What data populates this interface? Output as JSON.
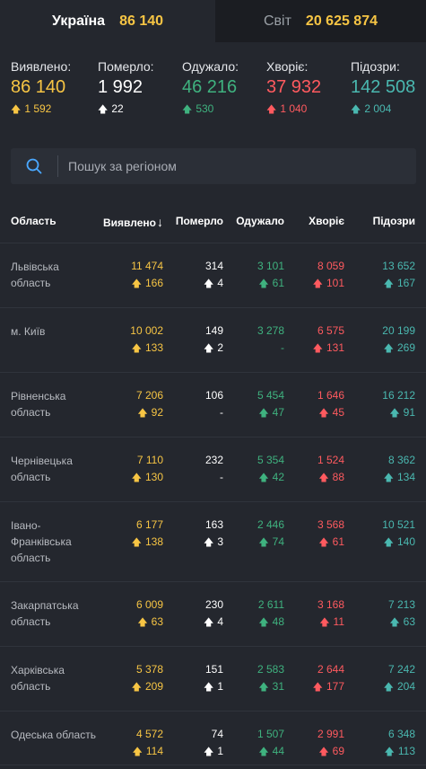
{
  "tabs": [
    {
      "name": "Україна",
      "value": "86 140"
    },
    {
      "name": "Світ",
      "value": "20 625 874"
    }
  ],
  "summary": [
    {
      "label": "Виявлено:",
      "value": "86 140",
      "change": "1 592",
      "color": "yellow"
    },
    {
      "label": "Померло:",
      "value": "1 992",
      "change": "22",
      "color": "white"
    },
    {
      "label": "Одужало:",
      "value": "46 216",
      "change": "530",
      "color": "green"
    },
    {
      "label": "Хворіє:",
      "value": "37 932",
      "change": "1 040",
      "color": "red"
    },
    {
      "label": "Підозри:",
      "value": "142 508",
      "change": "2 004",
      "color": "teal"
    }
  ],
  "search": {
    "placeholder": "Пошук за регіоном",
    "icon": "search-icon"
  },
  "table": {
    "headers": {
      "region": "Область",
      "detected": "Виявлено",
      "detected_sort": "↓",
      "died": "Померло",
      "recovered": "Одужало",
      "sick": "Хворіє",
      "suspected": "Підозри"
    },
    "rows": [
      {
        "region": "Львівська область",
        "detected": "11 474",
        "detected_ch": "166",
        "died": "314",
        "died_ch": "4",
        "recovered": "3 101",
        "recovered_ch": "61",
        "sick": "8 059",
        "sick_ch": "101",
        "suspected": "13 652",
        "suspected_ch": "167"
      },
      {
        "region": "м. Київ",
        "detected": "10 002",
        "detected_ch": "133",
        "died": "149",
        "died_ch": "2",
        "recovered": "3 278",
        "recovered_ch": "-",
        "sick": "6 575",
        "sick_ch": "131",
        "suspected": "20 199",
        "suspected_ch": "269"
      },
      {
        "region": "Рівненська область",
        "detected": "7 206",
        "detected_ch": "92",
        "died": "106",
        "died_ch": "-",
        "recovered": "5 454",
        "recovered_ch": "47",
        "sick": "1 646",
        "sick_ch": "45",
        "suspected": "16 212",
        "suspected_ch": "91"
      },
      {
        "region": "Чернівецька область",
        "detected": "7 110",
        "detected_ch": "130",
        "died": "232",
        "died_ch": "-",
        "recovered": "5 354",
        "recovered_ch": "42",
        "sick": "1 524",
        "sick_ch": "88",
        "suspected": "8 362",
        "suspected_ch": "134"
      },
      {
        "region": "Івано-Франківська область",
        "detected": "6 177",
        "detected_ch": "138",
        "died": "163",
        "died_ch": "3",
        "recovered": "2 446",
        "recovered_ch": "74",
        "sick": "3 568",
        "sick_ch": "61",
        "suspected": "10 521",
        "suspected_ch": "140"
      },
      {
        "region": "Закарпатська область",
        "detected": "6 009",
        "detected_ch": "63",
        "died": "230",
        "died_ch": "4",
        "recovered": "2 611",
        "recovered_ch": "48",
        "sick": "3 168",
        "sick_ch": "11",
        "suspected": "7 213",
        "suspected_ch": "63"
      },
      {
        "region": "Харківська область",
        "detected": "5 378",
        "detected_ch": "209",
        "died": "151",
        "died_ch": "1",
        "recovered": "2 583",
        "recovered_ch": "31",
        "sick": "2 644",
        "sick_ch": "177",
        "suspected": "7 242",
        "suspected_ch": "204"
      },
      {
        "region": "Одеська область",
        "detected": "4 572",
        "detected_ch": "114",
        "died": "74",
        "died_ch": "1",
        "recovered": "1 507",
        "recovered_ch": "44",
        "sick": "2 991",
        "sick_ch": "69",
        "suspected": "6 348",
        "suspected_ch": "113"
      }
    ]
  },
  "colors": {
    "yellow": "#f7c544",
    "white": "#ffffff",
    "green": "#3fb27f",
    "red": "#ff5a5f",
    "teal": "#4ab8b0",
    "background": "#24272e"
  }
}
